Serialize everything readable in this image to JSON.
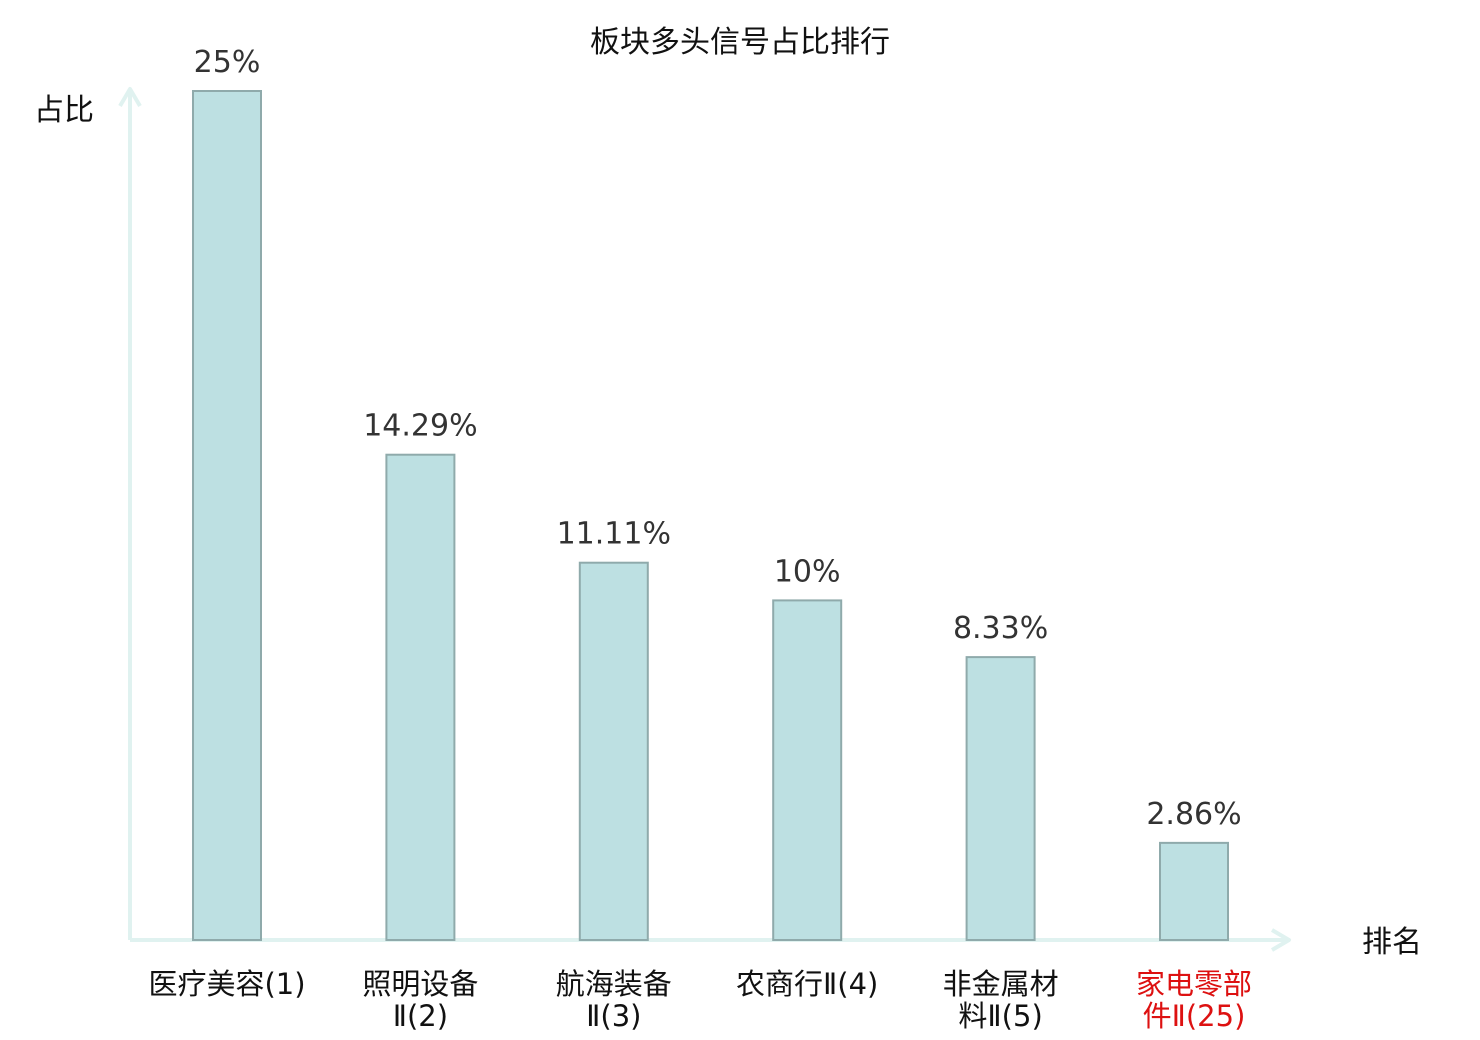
{
  "chart_data": {
    "type": "bar",
    "title": "板块多头信号占比排行",
    "ylabel": "占比",
    "xlabel": "排名",
    "categories": [
      [
        "医疗美容(1)"
      ],
      [
        "照明设备",
        "Ⅱ(2)"
      ],
      [
        "航海装备",
        "Ⅱ(3)"
      ],
      [
        "农商行Ⅱ(4)"
      ],
      [
        "非金属材",
        "料Ⅱ(5)"
      ],
      [
        "家电零部",
        "件Ⅱ(25)"
      ]
    ],
    "values": [
      25,
      14.29,
      11.11,
      10,
      8.33,
      2.86
    ],
    "value_labels": [
      "25%",
      "14.29%",
      "11.11%",
      "10%",
      "8.33%",
      "2.86%"
    ],
    "category_colors": [
      "#111111",
      "#111111",
      "#111111",
      "#111111",
      "#111111",
      "#dd1111"
    ],
    "ylim": [
      0,
      25
    ],
    "grid": false,
    "colors": {
      "bar_fill": "#bde0e2",
      "bar_stroke": "#8faaab",
      "axis": "#e0f2f0"
    }
  }
}
